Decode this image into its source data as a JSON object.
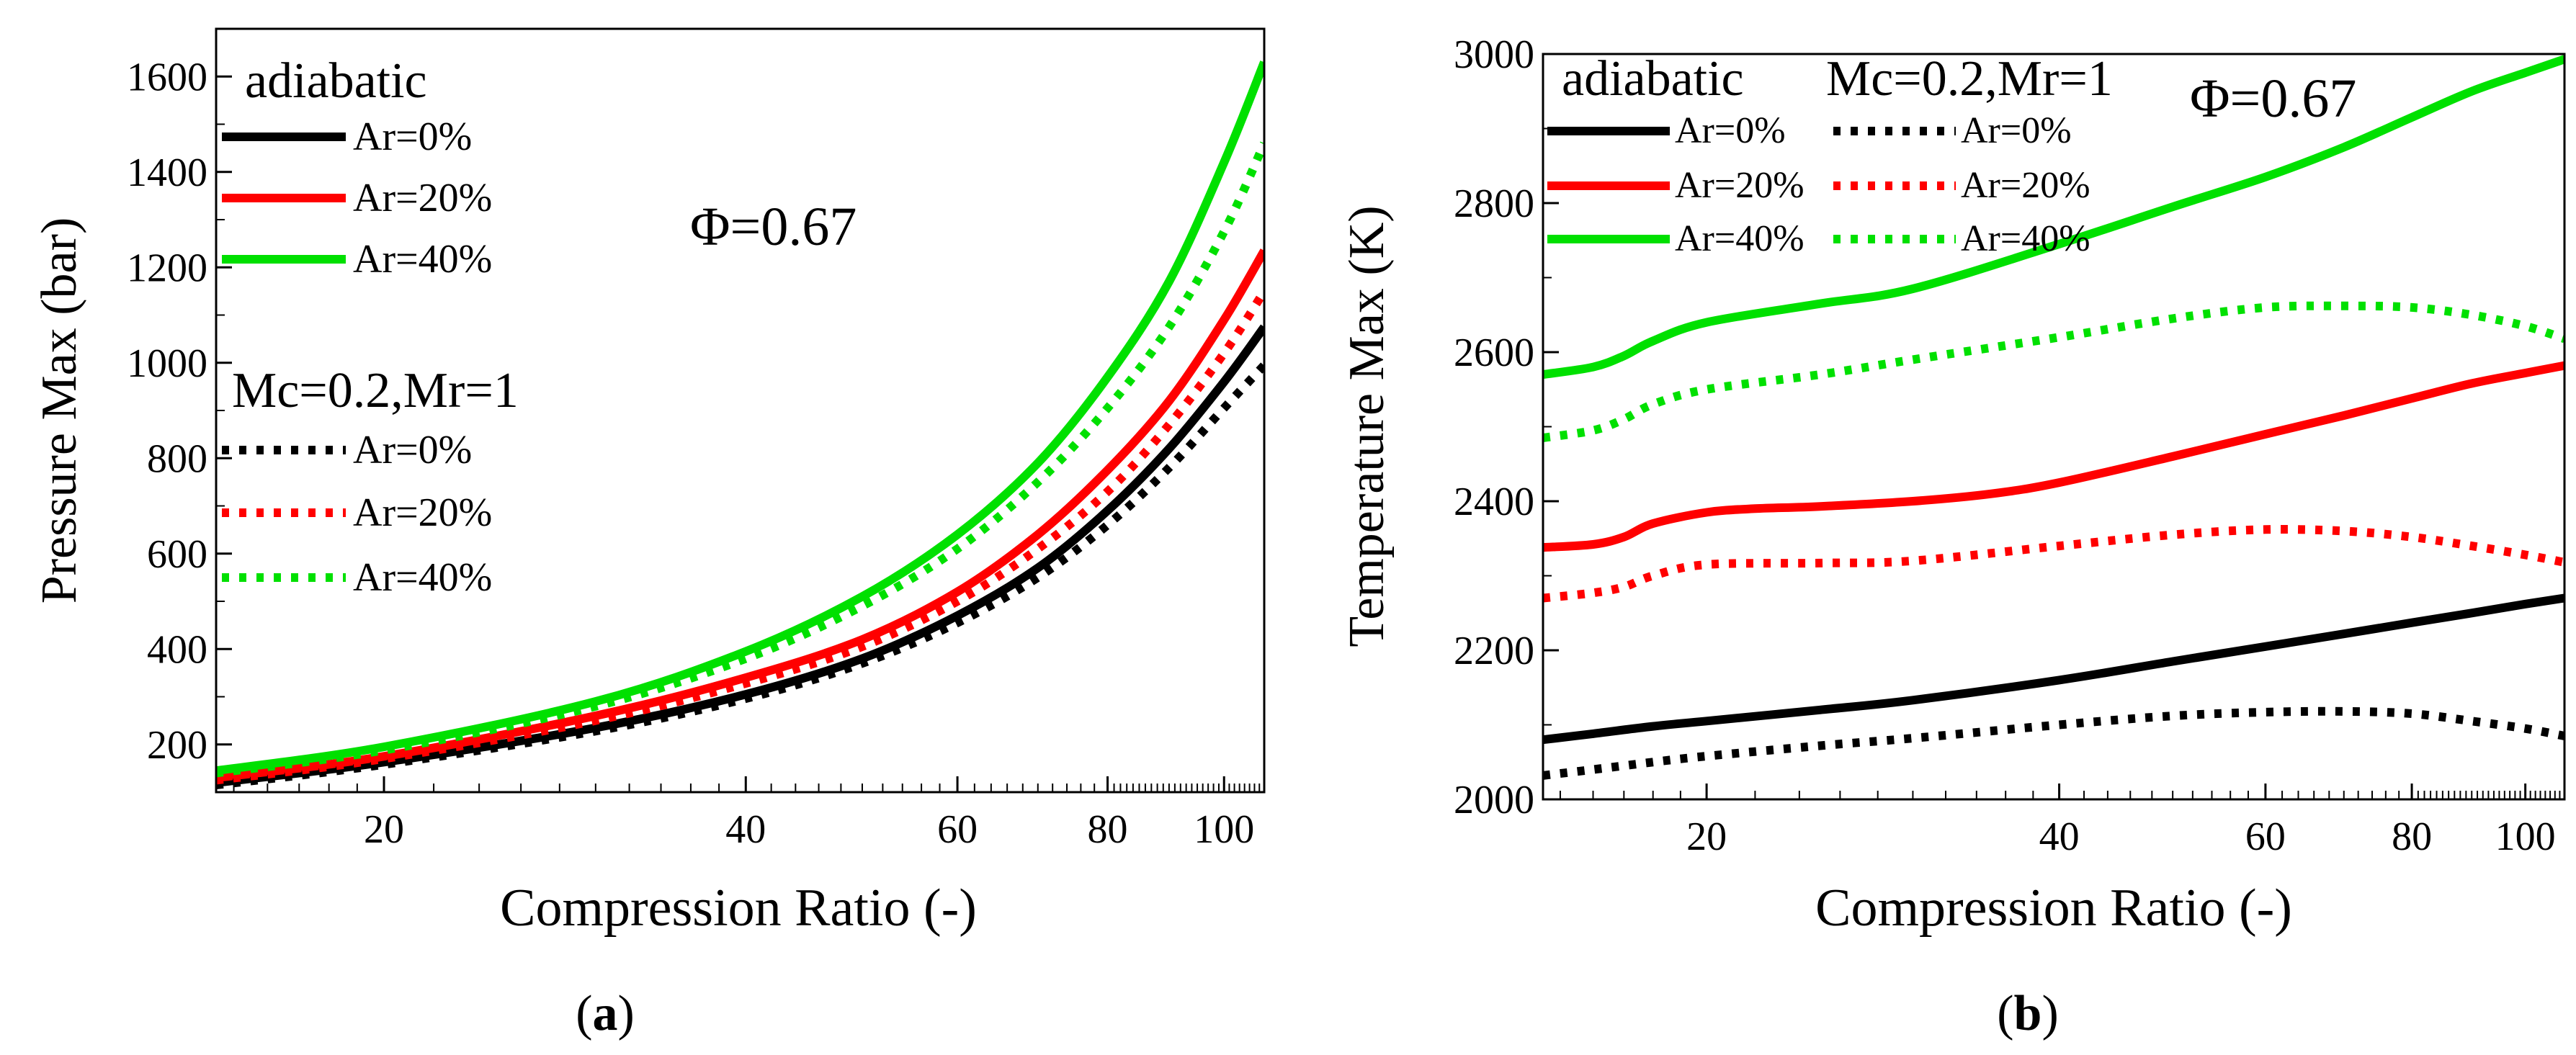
{
  "figure": {
    "captions": [
      {
        "open": "(",
        "letter": "a",
        "close": ")"
      },
      {
        "open": "(",
        "letter": "b",
        "close": ")"
      }
    ]
  },
  "colors": {
    "black": "#000000",
    "red": "#ff0000",
    "green": "#00e000"
  },
  "chart_data": [
    {
      "type": "line",
      "xlabel": "Compression Ratio (-)",
      "ylabel": "Pressure Max (bar)",
      "xscale": "log",
      "xlim": [
        14.5,
        108
      ],
      "ylim": [
        100,
        1700
      ],
      "xticks": [
        20,
        40,
        60,
        80,
        100
      ],
      "yticks": [
        200,
        400,
        600,
        800,
        1000,
        1200,
        1400,
        1600
      ],
      "annotation": "Φ=0.67",
      "legend_groups": [
        {
          "title": "adiabatic",
          "style": "solid",
          "entries": [
            "Ar=0%",
            "Ar=20%",
            "Ar=40%"
          ]
        },
        {
          "title": "Mc=0.2,Mr=1",
          "style": "dotted",
          "entries": [
            "Ar=0%",
            "Ar=20%",
            "Ar=40%"
          ]
        }
      ],
      "series": [
        {
          "group": "adiabatic",
          "name": "Ar=0%",
          "color": "#000000",
          "style": "solid",
          "x": [
            14.5,
            20,
            30,
            40,
            50,
            60,
            70,
            80,
            90,
            100,
            108
          ],
          "y": [
            120,
            163,
            235,
            305,
            380,
            470,
            570,
            690,
            820,
            960,
            1075
          ]
        },
        {
          "group": "adiabatic",
          "name": "Ar=20%",
          "color": "#ff0000",
          "style": "solid",
          "x": [
            14.5,
            20,
            30,
            40,
            50,
            60,
            70,
            80,
            90,
            100,
            108
          ],
          "y": [
            130,
            175,
            260,
            340,
            420,
            520,
            640,
            775,
            920,
            1090,
            1235
          ]
        },
        {
          "group": "adiabatic",
          "name": "Ar=40%",
          "color": "#00e000",
          "style": "solid",
          "x": [
            14.5,
            20,
            30,
            40,
            50,
            60,
            70,
            80,
            90,
            100,
            108
          ],
          "y": [
            145,
            195,
            290,
            395,
            510,
            640,
            790,
            970,
            1170,
            1420,
            1630
          ]
        },
        {
          "group": "Mc=0.2,Mr=1",
          "name": "Ar=0%",
          "color": "#000000",
          "style": "dotted",
          "x": [
            14.5,
            20,
            30,
            40,
            50,
            60,
            70,
            80,
            90,
            100,
            108
          ],
          "y": [
            115,
            158,
            228,
            296,
            370,
            455,
            550,
            660,
            780,
            905,
            995
          ]
        },
        {
          "group": "Mc=0.2,Mr=1",
          "name": "Ar=20%",
          "color": "#ff0000",
          "style": "dotted",
          "x": [
            14.5,
            20,
            30,
            40,
            50,
            60,
            70,
            80,
            90,
            100,
            108
          ],
          "y": [
            125,
            170,
            250,
            328,
            405,
            500,
            610,
            730,
            870,
            1020,
            1150
          ]
        },
        {
          "group": "Mc=0.2,Mr=1",
          "name": "Ar=40%",
          "color": "#00e000",
          "style": "dotted",
          "x": [
            14.5,
            20,
            30,
            40,
            50,
            60,
            70,
            80,
            90,
            100,
            108
          ],
          "y": [
            140,
            188,
            280,
            380,
            490,
            610,
            750,
            905,
            1075,
            1275,
            1460
          ]
        }
      ]
    },
    {
      "type": "line",
      "xlabel": "Compression Ratio (-)",
      "ylabel": "Temperature Max (K)",
      "xscale": "log",
      "xlim": [
        14.5,
        108
      ],
      "ylim": [
        2000,
        3000
      ],
      "xticks": [
        20,
        40,
        60,
        80,
        100
      ],
      "yticks": [
        2000,
        2200,
        2400,
        2600,
        2800,
        3000
      ],
      "annotation": "Φ=0.67",
      "legend_groups": [
        {
          "title": "adiabatic",
          "style": "solid",
          "entries": [
            "Ar=0%",
            "Ar=20%",
            "Ar=40%"
          ]
        },
        {
          "title": "Mc=0.2,Mr=1",
          "style": "dotted",
          "entries": [
            "Ar=0%",
            "Ar=20%",
            "Ar=40%"
          ]
        }
      ],
      "series": [
        {
          "group": "adiabatic",
          "name": "Ar=0%",
          "color": "#000000",
          "style": "solid",
          "x": [
            14.5,
            16,
            18,
            20,
            25,
            30,
            40,
            50,
            60,
            70,
            80,
            90,
            100,
            108
          ],
          "y": [
            2080,
            2088,
            2098,
            2105,
            2120,
            2133,
            2160,
            2185,
            2205,
            2222,
            2237,
            2250,
            2262,
            2270
          ]
        },
        {
          "group": "adiabatic",
          "name": "Ar=20%",
          "color": "#ff0000",
          "style": "solid",
          "x": [
            14.5,
            16,
            17,
            18,
            20,
            22,
            25,
            30,
            35,
            40,
            50,
            60,
            70,
            80,
            90,
            100,
            108
          ],
          "y": [
            2338,
            2342,
            2352,
            2370,
            2385,
            2390,
            2393,
            2400,
            2410,
            2425,
            2460,
            2490,
            2515,
            2538,
            2558,
            2572,
            2582
          ]
        },
        {
          "group": "adiabatic",
          "name": "Ar=40%",
          "color": "#00e000",
          "style": "solid",
          "x": [
            14.5,
            16,
            17,
            18,
            20,
            25,
            30,
            40,
            50,
            60,
            70,
            80,
            90,
            100,
            108
          ],
          "y": [
            2570,
            2580,
            2595,
            2615,
            2640,
            2665,
            2685,
            2745,
            2795,
            2835,
            2875,
            2915,
            2950,
            2975,
            2993
          ]
        },
        {
          "group": "Mc=0.2,Mr=1",
          "name": "Ar=0%",
          "color": "#000000",
          "style": "dotted",
          "x": [
            14.5,
            16,
            18,
            20,
            25,
            30,
            40,
            50,
            60,
            70,
            80,
            90,
            100,
            108
          ],
          "y": [
            2032,
            2040,
            2050,
            2058,
            2072,
            2082,
            2100,
            2112,
            2117,
            2118,
            2115,
            2105,
            2095,
            2085
          ]
        },
        {
          "group": "Mc=0.2,Mr=1",
          "name": "Ar=20%",
          "color": "#ff0000",
          "style": "dotted",
          "x": [
            14.5,
            16,
            17,
            18,
            20,
            25,
            30,
            40,
            50,
            60,
            70,
            80,
            90,
            100,
            108
          ],
          "y": [
            2270,
            2277,
            2285,
            2300,
            2315,
            2317,
            2320,
            2340,
            2355,
            2362,
            2360,
            2352,
            2340,
            2328,
            2318
          ]
        },
        {
          "group": "Mc=0.2,Mr=1",
          "name": "Ar=40%",
          "color": "#00e000",
          "style": "dotted",
          "x": [
            14.5,
            16,
            17,
            18,
            20,
            25,
            30,
            40,
            50,
            60,
            70,
            80,
            90,
            100,
            108
          ],
          "y": [
            2485,
            2495,
            2510,
            2530,
            2550,
            2570,
            2590,
            2620,
            2645,
            2660,
            2662,
            2660,
            2650,
            2635,
            2618
          ]
        }
      ]
    }
  ]
}
